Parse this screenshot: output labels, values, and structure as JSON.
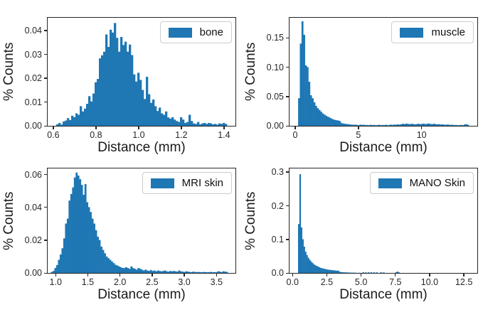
{
  "figure": {
    "background": "#ffffff",
    "bar_color": "#1f77b4",
    "axis_color": "#262626",
    "legend_border_color": "#cccccc"
  },
  "chart_data": [
    {
      "type": "bar",
      "subtype": "histogram",
      "legend": "bone",
      "legend_position": "upper right",
      "xlabel": "Distance (mm)",
      "ylabel": "% Counts",
      "grid": false,
      "xlim": [
        0.575,
        1.455
      ],
      "ylim": [
        0,
        0.0452
      ],
      "bin_start": 0.615,
      "bin_width": 0.01,
      "heights": [
        0.0006,
        0.0012,
        0.0005,
        0.0018,
        0.0022,
        0.0032,
        0.0024,
        0.0042,
        0.0036,
        0.0052,
        0.0046,
        0.0082,
        0.006,
        0.0072,
        0.0092,
        0.0124,
        0.0102,
        0.0135,
        0.0182,
        0.0196,
        0.0282,
        0.0295,
        0.031,
        0.0382,
        0.033,
        0.0402,
        0.039,
        0.043,
        0.0368,
        0.031,
        0.0372,
        0.0338,
        0.0352,
        0.031,
        0.034,
        0.0296,
        0.0215,
        0.0185,
        0.0222,
        0.0192,
        0.015,
        0.0112,
        0.0205,
        0.0132,
        0.0096,
        0.011,
        0.0082,
        0.0062,
        0.0076,
        0.0052,
        0.0046,
        0.006,
        0.0035,
        0.003,
        0.0036,
        0.0026,
        0.002,
        0.0016,
        0.0036,
        0.0026,
        0.0012,
        0.0016,
        0.0046,
        0.002,
        0.001,
        0.0008,
        0.0016,
        0.0006,
        0.001,
        0.0012,
        0.0008,
        0.0012,
        0.001,
        0.0006,
        0.0008,
        0.0005,
        0.001,
        0.0008,
        0.0012,
        0.0008
      ],
      "xticks": [
        0.6,
        0.8,
        1.0,
        1.2,
        1.4
      ],
      "xtick_labels": [
        "0.6",
        "0.8",
        "1.0",
        "1.2",
        "1.4"
      ],
      "yticks": [
        0,
        0.01,
        0.02,
        0.03,
        0.04
      ],
      "ytick_labels": [
        "0.00",
        "0.01",
        "0.02",
        "0.03",
        "0.04"
      ]
    },
    {
      "type": "bar",
      "subtype": "histogram",
      "legend": "muscle",
      "legend_position": "upper right",
      "xlabel": "Distance (mm)",
      "ylabel": "% Counts",
      "grid": false,
      "xlim": [
        -0.43,
        14.43
      ],
      "ylim": [
        0,
        0.184
      ],
      "bin_start": 0.25,
      "bin_width": 0.135,
      "heights": [
        0.047,
        0.14,
        0.178,
        0.155,
        0.103,
        0.1,
        0.075,
        0.052,
        0.047,
        0.04,
        0.034,
        0.03,
        0.027,
        0.024,
        0.021,
        0.019,
        0.017,
        0.0155,
        0.014,
        0.0125,
        0.011,
        0.01,
        0.0095,
        0.009,
        0.008,
        0.0045,
        0.004,
        0.0035,
        0.003,
        0.0028,
        0.0022,
        0.002,
        0.0018,
        0.002,
        0.0015,
        0.001,
        0.002,
        0.0015,
        0.0018,
        0.0012,
        0.0015,
        0.001,
        0.0018,
        0.0012,
        0.0015,
        0.001,
        0.0012,
        0.0018,
        0.001,
        0.0015,
        0.0012,
        0.0018,
        0.001,
        0.0015,
        0.002,
        0.0015,
        0.0022,
        0.0018,
        0.0025,
        0.002,
        0.0028,
        0.0035,
        0.003,
        0.0038,
        0.0032,
        0.0028,
        0.0035,
        0.003,
        0.0025,
        0.003,
        0.0035,
        0.0028,
        0.0032,
        0.0038,
        0.003,
        0.0035,
        0.004,
        0.0032,
        0.0028,
        0.0035,
        0.003,
        0.0025,
        0.0028,
        0.0022,
        0.0025,
        0.002,
        0.0018,
        0.0022,
        0.0018,
        0.0015,
        0.0018,
        0.0012,
        0.0015,
        0.001,
        0.0012,
        0.0015,
        0.001,
        0.0022,
        0.0028,
        0.0018
      ],
      "xticks": [
        0,
        5,
        10
      ],
      "xtick_labels": [
        "0",
        "5",
        "10"
      ],
      "yticks": [
        0,
        0.05,
        0.1,
        0.15
      ],
      "ytick_labels": [
        "0.00",
        "0.05",
        "0.10",
        "0.15"
      ]
    },
    {
      "type": "bar",
      "subtype": "histogram",
      "legend": "MRI skin",
      "legend_position": "upper right",
      "xlabel": "Distance (mm)",
      "ylabel": "% Counts",
      "grid": false,
      "xlim": [
        0.88,
        3.8
      ],
      "ylim": [
        0,
        0.0635
      ],
      "bin_start": 0.93,
      "bin_width": 0.0275,
      "heights": [
        0.0006,
        0.0012,
        0.003,
        0.0048,
        0.008,
        0.0112,
        0.015,
        0.021,
        0.03,
        0.033,
        0.044,
        0.048,
        0.052,
        0.058,
        0.061,
        0.0592,
        0.057,
        0.0535,
        0.0475,
        0.054,
        0.043,
        0.04,
        0.037,
        0.033,
        0.03,
        0.026,
        0.022,
        0.02,
        0.016,
        0.014,
        0.012,
        0.01,
        0.009,
        0.008,
        0.007,
        0.006,
        0.005,
        0.0045,
        0.004,
        0.0035,
        0.003,
        0.003,
        0.0035,
        0.003,
        0.0025,
        0.004,
        0.003,
        0.0025,
        0.002,
        0.003,
        0.0025,
        0.002,
        0.0015,
        0.002,
        0.0015,
        0.0012,
        0.0018,
        0.0012,
        0.0015,
        0.001,
        0.0015,
        0.0012,
        0.001,
        0.0012,
        0.0015,
        0.001,
        0.0008,
        0.0012,
        0.001,
        0.0012,
        0.001,
        0.0008,
        0.0015,
        0.001,
        0.0008,
        0.0006,
        0.001,
        0.0008,
        0.0006,
        0.0005,
        0.0008,
        0.0006,
        0.0005,
        0.0006,
        0.0005,
        0.0004,
        0.0006,
        0.0005,
        0.0004,
        0.0005,
        0.0006,
        0.0004,
        0.0005,
        0.0004,
        0.001,
        0.0008,
        0.0005,
        0.001,
        0.0008,
        0.0006
      ],
      "xticks": [
        1.0,
        1.5,
        2.0,
        2.5,
        3.0,
        3.5
      ],
      "xtick_labels": [
        "1.0",
        "1.5",
        "2.0",
        "2.5",
        "3.0",
        "3.5"
      ],
      "yticks": [
        0,
        0.02,
        0.04,
        0.06
      ],
      "ytick_labels": [
        "0.00",
        "0.02",
        "0.04",
        "0.06"
      ]
    },
    {
      "type": "bar",
      "subtype": "histogram",
      "legend": "MANO Skin",
      "legend_position": "upper right",
      "xlabel": "Distance (mm)",
      "ylabel": "% Counts",
      "grid": false,
      "xlim": [
        -0.2,
        13.5
      ],
      "ylim": [
        0,
        0.31
      ],
      "bin_start": 0.42,
      "bin_width": 0.1,
      "heights": [
        0.145,
        0.293,
        0.135,
        0.1,
        0.078,
        0.063,
        0.053,
        0.045,
        0.039,
        0.034,
        0.03,
        0.026,
        0.023,
        0.021,
        0.019,
        0.017,
        0.015,
        0.014,
        0.013,
        0.012,
        0.011,
        0.01,
        0.0095,
        0.009,
        0.0085,
        0.008,
        0.0075,
        0.007,
        0.0068,
        0.0065,
        0.003,
        0.0025,
        0.002,
        0.0018,
        0.0015,
        0.0015,
        0.0012,
        0.001,
        0.001,
        0.0008,
        0.0008,
        0.0006,
        0.0005,
        0,
        0.0005,
        0,
        0,
        0.0025,
        0,
        0.002,
        0,
        0.0022,
        0,
        0.0025,
        0,
        0.002,
        0,
        0.0018,
        0,
        0,
        0.0022,
        0,
        0.0018,
        0,
        0,
        0,
        0,
        0,
        0,
        0,
        0,
        0.002,
        0.004,
        0.002,
        0,
        0,
        0,
        0,
        0,
        0,
        0,
        0,
        0,
        0,
        0,
        0,
        0,
        0,
        0,
        0,
        0,
        0,
        0,
        0,
        0,
        0,
        0,
        0,
        0,
        0,
        0,
        0,
        0,
        0,
        0,
        0,
        0,
        0,
        0,
        0,
        0,
        0,
        0,
        0,
        0,
        0,
        0,
        0,
        0,
        0,
        0,
        0,
        0,
        0,
        0
      ],
      "xticks": [
        0.0,
        2.5,
        5.0,
        7.5,
        10.0,
        12.5
      ],
      "xtick_labels": [
        "0.0",
        "2.5",
        "5.0",
        "7.5",
        "10.0",
        "12.5"
      ],
      "yticks": [
        0,
        0.1,
        0.2,
        0.3
      ],
      "ytick_labels": [
        "0.0",
        "0.1",
        "0.2",
        "0.3"
      ]
    }
  ]
}
